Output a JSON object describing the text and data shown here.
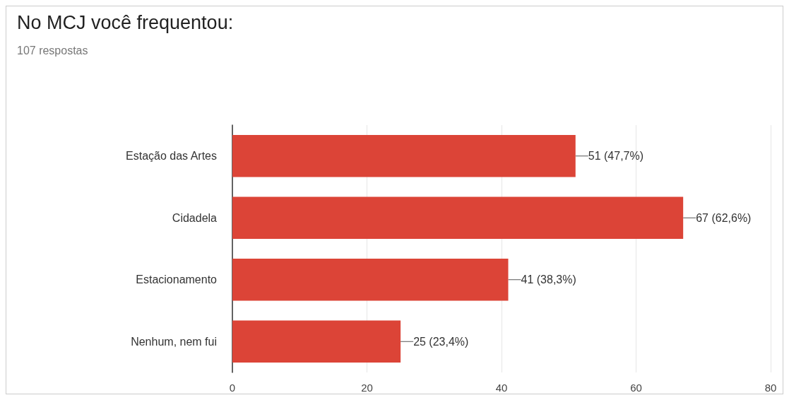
{
  "chart_data": {
    "type": "bar",
    "orientation": "horizontal",
    "title": "No MCJ você frequentou:",
    "subtitle": "107 respostas",
    "categories": [
      "Estação das Artes",
      "Cidadela",
      "Estacionamento",
      "Nenhum, nem fui"
    ],
    "values": [
      51,
      67,
      41,
      25
    ],
    "color": "#dc4437",
    "value_labels": [
      "51 (47,7%)",
      "67 (62,6%)",
      "41 (38,3%)",
      "25 (23,4%)"
    ],
    "xlim": [
      0,
      80
    ],
    "xticks": [
      0,
      20,
      40,
      60,
      80
    ],
    "grid": "x"
  }
}
